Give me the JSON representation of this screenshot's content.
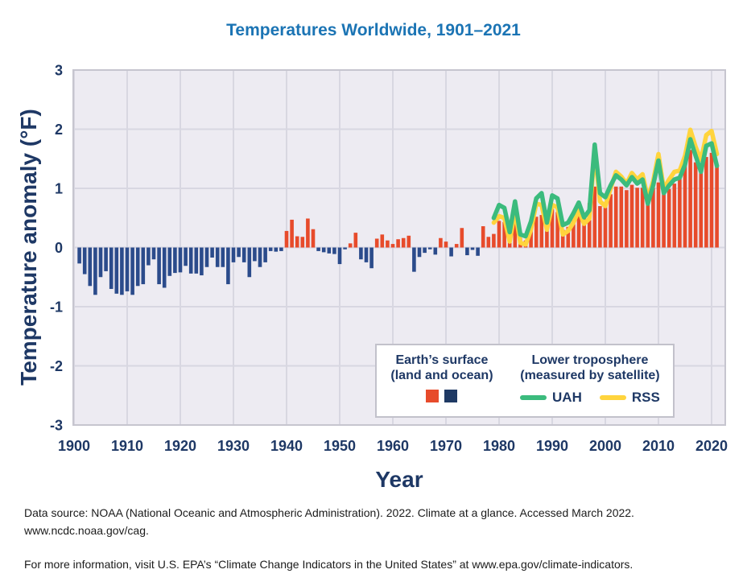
{
  "title": "Temperatures Worldwide, 1901–2021",
  "y_axis": {
    "label": "Temperature anomaly (°F)",
    "ticks": [
      3,
      2,
      1,
      0,
      -1,
      -2,
      -3
    ]
  },
  "x_axis": {
    "label": "Year",
    "ticks": [
      1900,
      1910,
      1920,
      1930,
      1940,
      1950,
      1960,
      1970,
      1980,
      1990,
      2000,
      2010,
      2020
    ]
  },
  "legend": {
    "surface": {
      "line1": "Earth’s surface",
      "line2": "(land and ocean)"
    },
    "satellite": {
      "line1": "Lower troposphere",
      "line2": "(measured by satellite)",
      "uah_label": "UAH",
      "rss_label": "RSS"
    }
  },
  "footer": {
    "source_line1": "Data source: NOAA (National Oceanic and Atmospheric Administration). 2022. Climate at a glance. Accessed March 2022.",
    "source_line2": "www.ncdc.noaa.gov/cag.",
    "more_info": "For more information, visit U.S. EPA’s “Climate Change Indicators in the United States” at www.epa.gov/climate-indicators."
  },
  "colors": {
    "title_blue": "#1B74B4",
    "axis_navy": "#1E3865",
    "bar_positive": "#E74B2B",
    "bar_negative": "#2B4B8B",
    "legend_navy_square": "#1F3A64",
    "uah_green": "#3BBB7D",
    "rss_yellow": "#FFD43D",
    "plot_background": "#EDEBF2",
    "gridline": "#D8D7E1",
    "plot_border": "#C6C5CF"
  },
  "chart_data": {
    "type": "bar",
    "title": "Temperatures Worldwide, 1901–2021",
    "xlabel": "Year",
    "ylabel": "Temperature anomaly (°F)",
    "ylim": [
      -3,
      3
    ],
    "xlim": [
      1900,
      2022
    ],
    "grid": true,
    "legend_position": "inside-bottom-right",
    "bar_series": {
      "name": "Earth's surface (land and ocean)",
      "start_year": 1901,
      "values": [
        -0.27,
        -0.45,
        -0.65,
        -0.8,
        -0.5,
        -0.4,
        -0.7,
        -0.78,
        -0.8,
        -0.74,
        -0.8,
        -0.65,
        -0.62,
        -0.3,
        -0.2,
        -0.62,
        -0.68,
        -0.48,
        -0.43,
        -0.42,
        -0.31,
        -0.44,
        -0.44,
        -0.47,
        -0.33,
        -0.17,
        -0.33,
        -0.33,
        -0.62,
        -0.25,
        -0.16,
        -0.25,
        -0.5,
        -0.23,
        -0.33,
        -0.25,
        -0.06,
        -0.07,
        -0.06,
        0.28,
        0.47,
        0.19,
        0.18,
        0.49,
        0.31,
        -0.06,
        -0.08,
        -0.1,
        -0.11,
        -0.28,
        -0.03,
        0.07,
        0.25,
        -0.2,
        -0.25,
        -0.35,
        0.15,
        0.22,
        0.12,
        0.06,
        0.14,
        0.16,
        0.2,
        -0.41,
        -0.16,
        -0.09,
        -0.03,
        -0.12,
        0.16,
        0.1,
        -0.15,
        0.06,
        0.33,
        -0.13,
        -0.04,
        -0.14,
        0.36,
        0.18,
        0.23,
        0.45,
        0.43,
        0.2,
        0.5,
        0.16,
        0.12,
        0.28,
        0.52,
        0.55,
        0.35,
        0.65,
        0.6,
        0.3,
        0.35,
        0.47,
        0.7,
        0.5,
        0.75,
        1.03,
        0.7,
        0.68,
        0.9,
        1.03,
        1.03,
        0.97,
        1.06,
        1.01,
        1.01,
        0.85,
        1.01,
        1.1,
        0.9,
        0.99,
        1.08,
        1.21,
        1.47,
        1.65,
        1.44,
        1.3,
        1.53,
        1.6,
        1.4
      ]
    },
    "line_series": [
      {
        "name": "RSS",
        "start_year": 1979,
        "values": [
          0.42,
          0.53,
          0.5,
          0.1,
          0.63,
          0.08,
          0.05,
          0.3,
          0.74,
          0.72,
          0.3,
          0.72,
          0.68,
          0.22,
          0.28,
          0.42,
          0.63,
          0.4,
          0.49,
          1.65,
          0.78,
          0.7,
          1.0,
          1.28,
          1.2,
          1.08,
          1.26,
          1.15,
          1.24,
          0.83,
          1.12,
          1.58,
          0.99,
          1.15,
          1.28,
          1.3,
          1.55,
          1.99,
          1.7,
          1.48,
          1.9,
          1.97,
          1.58
        ]
      },
      {
        "name": "UAH",
        "start_year": 1979,
        "values": [
          0.5,
          0.72,
          0.67,
          0.26,
          0.78,
          0.22,
          0.19,
          0.44,
          0.83,
          0.92,
          0.42,
          0.88,
          0.83,
          0.38,
          0.42,
          0.58,
          0.76,
          0.51,
          0.63,
          1.74,
          0.92,
          0.85,
          1.05,
          1.22,
          1.15,
          1.05,
          1.19,
          1.08,
          1.15,
          0.74,
          1.05,
          1.47,
          0.92,
          1.05,
          1.15,
          1.18,
          1.4,
          1.83,
          1.55,
          1.28,
          1.72,
          1.76,
          1.38
        ]
      }
    ]
  }
}
